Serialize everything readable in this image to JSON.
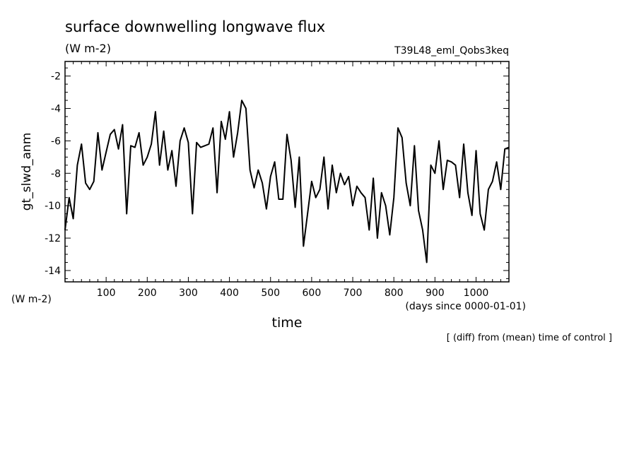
{
  "chart_data": {
    "type": "line",
    "title": "surface downwelling longwave flux",
    "units": "(W m-2)",
    "run_label": "T39L48_eml_Qobs3keq",
    "ylabel": "gt_slwd_anm",
    "ylabel_units": "(W m-2)",
    "xlabel": "time",
    "xlabel_units": "(days since 0000-01-01)",
    "footnote": "[ (diff) from (mean) time of control ]",
    "xlim": [
      0,
      1080
    ],
    "ylim": [
      -14.7,
      -1.1
    ],
    "x_ticks": [
      100,
      200,
      300,
      400,
      500,
      600,
      700,
      800,
      900,
      1000
    ],
    "y_ticks": [
      -2,
      -4,
      -6,
      -8,
      -10,
      -12,
      -14
    ],
    "grid": false,
    "series": [
      {
        "x": [
          0,
          10,
          20,
          30,
          40,
          50,
          60,
          70,
          80,
          90,
          100,
          110,
          120,
          130,
          140,
          150,
          160,
          170,
          180,
          190,
          200,
          210,
          220,
          230,
          240,
          250,
          260,
          270,
          280,
          290,
          300,
          310,
          320,
          330,
          340,
          350,
          360,
          370,
          380,
          390,
          400,
          410,
          420,
          430,
          440,
          450,
          460,
          470,
          480,
          490,
          500,
          510,
          520,
          530,
          540,
          550,
          560,
          570,
          580,
          590,
          600,
          610,
          620,
          630,
          640,
          650,
          660,
          670,
          680,
          690,
          700,
          710,
          720,
          730,
          740,
          750,
          760,
          770,
          780,
          790,
          800,
          810,
          820,
          830,
          840,
          850,
          860,
          870,
          880,
          890,
          900,
          910,
          920,
          930,
          940,
          950,
          960,
          970,
          980,
          990,
          1000,
          1010,
          1020,
          1030,
          1040,
          1050,
          1060,
          1070,
          1080
        ],
        "values": [
          -11.5,
          -9.5,
          -10.8,
          -7.5,
          -6.2,
          -8.6,
          -9.0,
          -8.5,
          -5.5,
          -7.8,
          -6.7,
          -5.6,
          -5.3,
          -6.5,
          -5.0,
          -10.5,
          -6.3,
          -6.4,
          -5.5,
          -7.5,
          -7.0,
          -6.2,
          -4.2,
          -7.5,
          -5.4,
          -7.8,
          -6.6,
          -8.8,
          -6.0,
          -5.2,
          -6.1,
          -10.5,
          -6.1,
          -6.4,
          -6.3,
          -6.2,
          -5.2,
          -9.2,
          -4.8,
          -5.9,
          -4.2,
          -7.0,
          -5.5,
          -3.5,
          -4.0,
          -7.8,
          -8.9,
          -7.8,
          -8.6,
          -10.2,
          -8.2,
          -7.3,
          -9.6,
          -9.6,
          -5.6,
          -7.2,
          -10.1,
          -7.0,
          -12.5,
          -10.5,
          -8.5,
          -9.5,
          -9.0,
          -7.0,
          -10.2,
          -7.5,
          -9.2,
          -8.0,
          -8.7,
          -8.2,
          -10.0,
          -8.8,
          -9.2,
          -9.5,
          -11.5,
          -8.3,
          -12.0,
          -9.2,
          -10.0,
          -11.8,
          -9.5,
          -5.2,
          -5.8,
          -8.6,
          -10.0,
          -6.3,
          -10.3,
          -11.5,
          -13.5,
          -7.5,
          -8.0,
          -6.0,
          -9.0,
          -7.2,
          -7.3,
          -7.5,
          -9.5,
          -6.2,
          -9.2,
          -10.6,
          -6.6,
          -10.5,
          -11.5,
          -9.0,
          -8.5,
          -7.3,
          -9.0,
          -6.5,
          -6.4
        ]
      }
    ]
  }
}
